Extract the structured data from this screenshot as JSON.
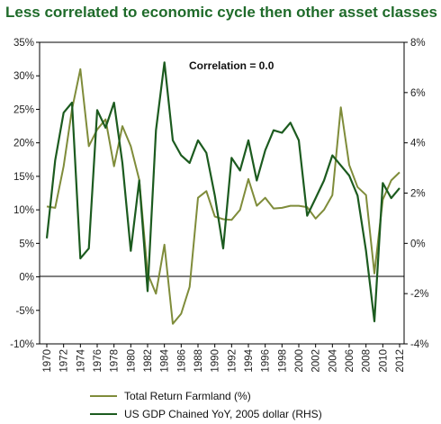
{
  "title": "Less correlated to economic cycle then other asset classes",
  "chart_data": {
    "type": "line",
    "annotation": "Correlation = 0.0",
    "x": [
      1970,
      1971,
      1972,
      1973,
      1974,
      1975,
      1976,
      1977,
      1978,
      1979,
      1980,
      1981,
      1982,
      1983,
      1984,
      1985,
      1986,
      1987,
      1988,
      1989,
      1990,
      1991,
      1992,
      1993,
      1994,
      1995,
      1996,
      1997,
      1998,
      1999,
      2000,
      2001,
      2002,
      2003,
      2004,
      2005,
      2006,
      2007,
      2008,
      2009,
      2010,
      2011,
      2012
    ],
    "x_tick_labels": [
      "1970",
      "1972",
      "1974",
      "1976",
      "1978",
      "1980",
      "1982",
      "1984",
      "1986",
      "1988",
      "1990",
      "1992",
      "1994",
      "1996",
      "1998",
      "2000",
      "2002",
      "2004",
      "2006",
      "2008",
      "2010",
      "2012"
    ],
    "left_axis": {
      "ylim": [
        -10,
        35
      ],
      "ticks": [
        "35%",
        "30%",
        "25%",
        "20%",
        "15%",
        "10%",
        "5%",
        "0%",
        "-5%",
        "-10%"
      ]
    },
    "right_axis": {
      "ylim": [
        -4,
        8
      ],
      "ticks": [
        "8%",
        "6%",
        "4%",
        "2%",
        "0%",
        "-2%",
        "-4%"
      ]
    },
    "series": [
      {
        "name": "Total Return Farmland (%)",
        "axis": "left",
        "color": "#7f8c3a",
        "values": [
          10.5,
          10.3,
          16.5,
          25.0,
          31.0,
          19.5,
          22.0,
          23.5,
          16.5,
          22.5,
          19.5,
          14.5,
          0.5,
          -2.5,
          4.8,
          -7.0,
          -5.5,
          -1.5,
          11.8,
          12.8,
          9.0,
          8.6,
          8.5,
          10.0,
          14.6,
          10.6,
          11.8,
          10.2,
          10.3,
          10.6,
          10.6,
          10.4,
          8.7,
          10.0,
          12.2,
          25.3,
          16.7,
          13.4,
          12.2,
          0.5,
          11.5,
          14.4,
          15.6
        ]
      },
      {
        "name": "US GDP Chained YoY, 2005 dollar (RHS)",
        "axis": "right",
        "color": "#1c5b1f",
        "values": [
          0.2,
          3.3,
          5.2,
          5.6,
          -0.6,
          -0.2,
          5.3,
          4.6,
          5.6,
          3.2,
          -0.3,
          2.5,
          -1.9,
          4.5,
          7.2,
          4.1,
          3.5,
          3.2,
          4.1,
          3.6,
          1.9,
          -0.2,
          3.4,
          2.9,
          4.1,
          2.5,
          3.7,
          4.5,
          4.4,
          4.8,
          4.1,
          1.1,
          1.8,
          2.5,
          3.5,
          3.1,
          2.7,
          1.9,
          -0.3,
          -3.1,
          2.4,
          1.8,
          2.2
        ]
      }
    ]
  }
}
